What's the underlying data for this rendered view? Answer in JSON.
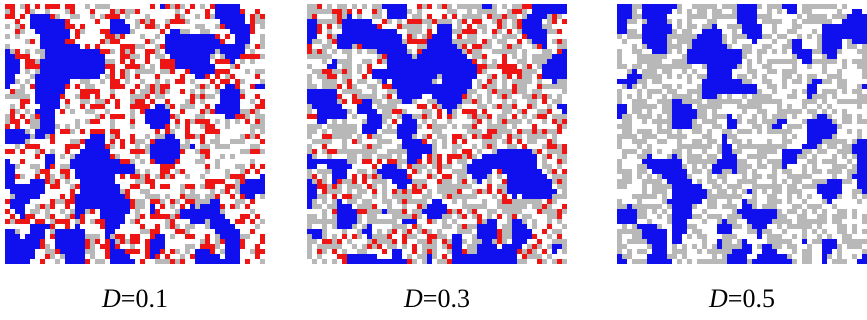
{
  "palette": {
    "blue": "#1010ee",
    "red": "#ee1515",
    "gray": "#b8b8b8",
    "white": "#ffffff"
  },
  "panels": [
    {
      "var": "D",
      "sep": "=",
      "value": "0.1",
      "blue": 0.3,
      "red": 0.17,
      "gray": 0.15,
      "white": 0.38
    },
    {
      "var": "D",
      "sep": "=",
      "value": "0.3",
      "blue": 0.28,
      "red": 0.12,
      "gray": 0.32,
      "white": 0.28
    },
    {
      "var": "D",
      "sep": "=",
      "value": "0.5",
      "blue": 0.25,
      "red": 0.0,
      "gray": 0.4,
      "white": 0.35
    }
  ]
}
